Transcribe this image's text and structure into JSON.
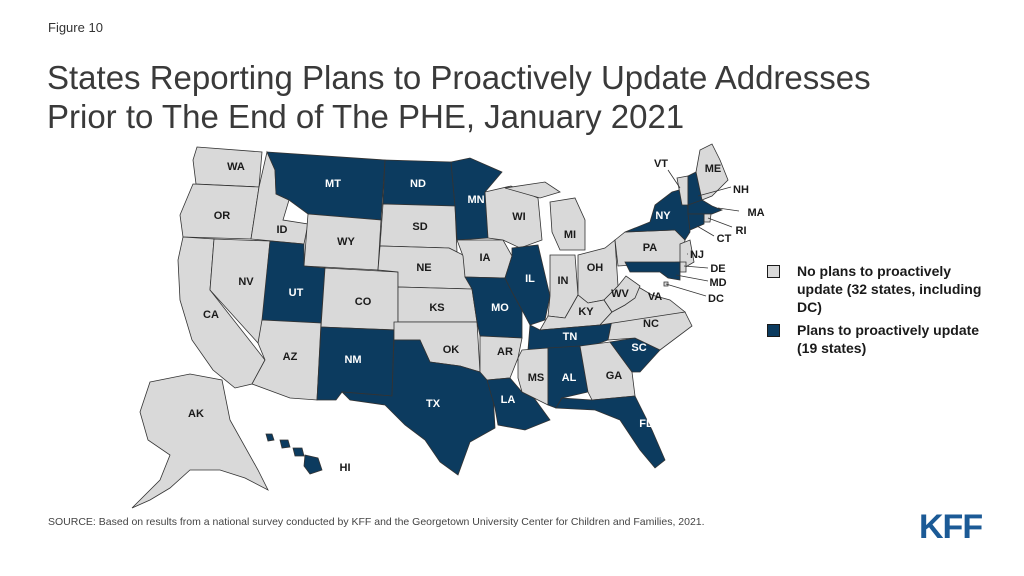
{
  "figure_label": "Figure 10",
  "title_line1": "States Reporting Plans to Proactively Update Addresses",
  "title_line2": "Prior to The End of The PHE, January 2021",
  "colors": {
    "no_plans": "#d9d9d9",
    "plans": "#0c3b5f",
    "border": "#333333"
  },
  "legend": [
    {
      "key": "no_plans",
      "text": "No plans to proactively update (32 states, including DC)"
    },
    {
      "key": "plans",
      "text": "Plans to proactively update (19 states)"
    }
  ],
  "states": [
    {
      "code": "WA",
      "plans": false
    },
    {
      "code": "OR",
      "plans": false
    },
    {
      "code": "CA",
      "plans": false
    },
    {
      "code": "NV",
      "plans": false
    },
    {
      "code": "ID",
      "plans": false
    },
    {
      "code": "MT",
      "plans": true
    },
    {
      "code": "WY",
      "plans": false
    },
    {
      "code": "UT",
      "plans": true
    },
    {
      "code": "AZ",
      "plans": false
    },
    {
      "code": "CO",
      "plans": false
    },
    {
      "code": "NM",
      "plans": true
    },
    {
      "code": "ND",
      "plans": true
    },
    {
      "code": "SD",
      "plans": false
    },
    {
      "code": "NE",
      "plans": false
    },
    {
      "code": "KS",
      "plans": false
    },
    {
      "code": "OK",
      "plans": false
    },
    {
      "code": "TX",
      "plans": true
    },
    {
      "code": "MN",
      "plans": true
    },
    {
      "code": "IA",
      "plans": false
    },
    {
      "code": "MO",
      "plans": true
    },
    {
      "code": "AR",
      "plans": false
    },
    {
      "code": "LA",
      "plans": true
    },
    {
      "code": "WI",
      "plans": false
    },
    {
      "code": "IL",
      "plans": true
    },
    {
      "code": "MI",
      "plans": false
    },
    {
      "code": "IN",
      "plans": false
    },
    {
      "code": "OH",
      "plans": false
    },
    {
      "code": "KY",
      "plans": false
    },
    {
      "code": "TN",
      "plans": true
    },
    {
      "code": "MS",
      "plans": false
    },
    {
      "code": "AL",
      "plans": true
    },
    {
      "code": "GA",
      "plans": false
    },
    {
      "code": "FL",
      "plans": true
    },
    {
      "code": "SC",
      "plans": true
    },
    {
      "code": "NC",
      "plans": false
    },
    {
      "code": "VA",
      "plans": false
    },
    {
      "code": "WV",
      "plans": false
    },
    {
      "code": "PA",
      "plans": false
    },
    {
      "code": "NY",
      "plans": true
    },
    {
      "code": "VT",
      "plans": false
    },
    {
      "code": "NH",
      "plans": true
    },
    {
      "code": "ME",
      "plans": false
    },
    {
      "code": "MA",
      "plans": true
    },
    {
      "code": "RI",
      "plans": false
    },
    {
      "code": "CT",
      "plans": true
    },
    {
      "code": "NJ",
      "plans": false
    },
    {
      "code": "DE",
      "plans": false
    },
    {
      "code": "MD",
      "plans": true
    },
    {
      "code": "DC",
      "plans": false
    },
    {
      "code": "AK",
      "plans": false
    },
    {
      "code": "HI",
      "plans": true
    }
  ],
  "source": "SOURCE: Based on results from a national survey conducted by KFF and the Georgetown University Center for Children and Families, 2021.",
  "logo": "KFF"
}
